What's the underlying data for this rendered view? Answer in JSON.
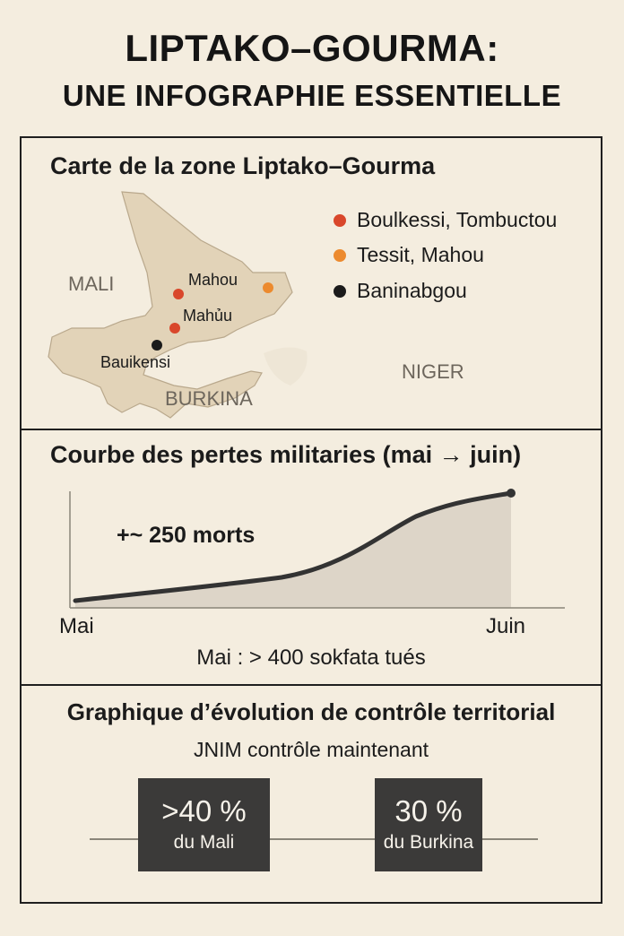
{
  "header": {
    "title_line1": "LIPTAKO–GOURMA:",
    "title_line2": "UNE INFOGRAPHIE ESSENTIELLE"
  },
  "map_section": {
    "heading": "Carte de la zone Liptako–Gourma",
    "legend": [
      {
        "label": "Boulkessi, Tombuctou",
        "color": "#d9472b"
      },
      {
        "label": "Tessit, Mahou",
        "color": "#ec8a2e"
      },
      {
        "label": "Baninabgou",
        "color": "#1b1b1b"
      }
    ],
    "country_labels": {
      "mali": "MALI",
      "burkina": "BURKINA",
      "niger": "NIGER"
    },
    "towns": [
      {
        "label": "Mahou",
        "color": "#d9472b"
      },
      {
        "label": "Mahủu",
        "color": "#d9472b"
      },
      {
        "label": "Bauikensi",
        "color": "#1b1b1b"
      },
      {
        "label": "",
        "color": "#ec8a2e"
      }
    ],
    "land_color": "#e2d3b8"
  },
  "curve_section": {
    "heading": "Courbe des pertes militaries (mai → juin)",
    "annotation": "+~ 250 morts",
    "x_start": "Mai",
    "x_end": "Juin",
    "note": "Mai : > 400 sokfata tués",
    "fill_color": "#ddd5c8",
    "line_color": "#333333"
  },
  "control_section": {
    "heading": "Graphique d’évolution de contrôle territorial",
    "subheading": "JNIM contrôle maintenant",
    "stats": [
      {
        "value": ">40 %",
        "label": "du Mali"
      },
      {
        "value": "30 %",
        "label": "du Burkina"
      }
    ]
  }
}
